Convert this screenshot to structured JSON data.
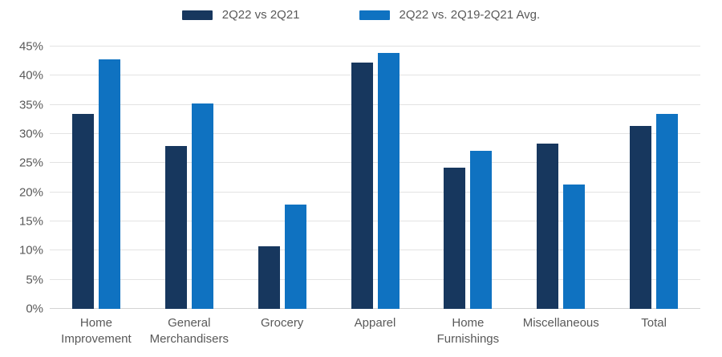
{
  "chart_data": {
    "type": "bar",
    "title": "",
    "categories": [
      "Home Improvement",
      "General Merchandisers",
      "Grocery",
      "Apparel",
      "Home Furnishings",
      "Miscellaneous",
      "Total"
    ],
    "series": [
      {
        "name": "2Q22 vs 2Q21",
        "color": "#17375E",
        "values": [
          33.4,
          28.0,
          10.7,
          42.2,
          24.2,
          28.3,
          31.4
        ]
      },
      {
        "name": "2Q22 vs. 2Q19-2Q21 Avg.",
        "color": "#0F72C1",
        "values": [
          42.8,
          35.3,
          17.9,
          43.9,
          27.1,
          21.4,
          33.5
        ]
      }
    ],
    "ylim": [
      0,
      45
    ],
    "y_tick_step": 5,
    "y_ticks": [
      "0%",
      "5%",
      "10%",
      "15%",
      "20%",
      "25%",
      "30%",
      "35%",
      "40%",
      "45%"
    ],
    "grid": true,
    "legend_position": "top"
  },
  "colors": {
    "background": "#FFFFFF",
    "gridline": "#E3E3E3",
    "baseline": "#D4D4D4",
    "axis_text": "#595959"
  }
}
